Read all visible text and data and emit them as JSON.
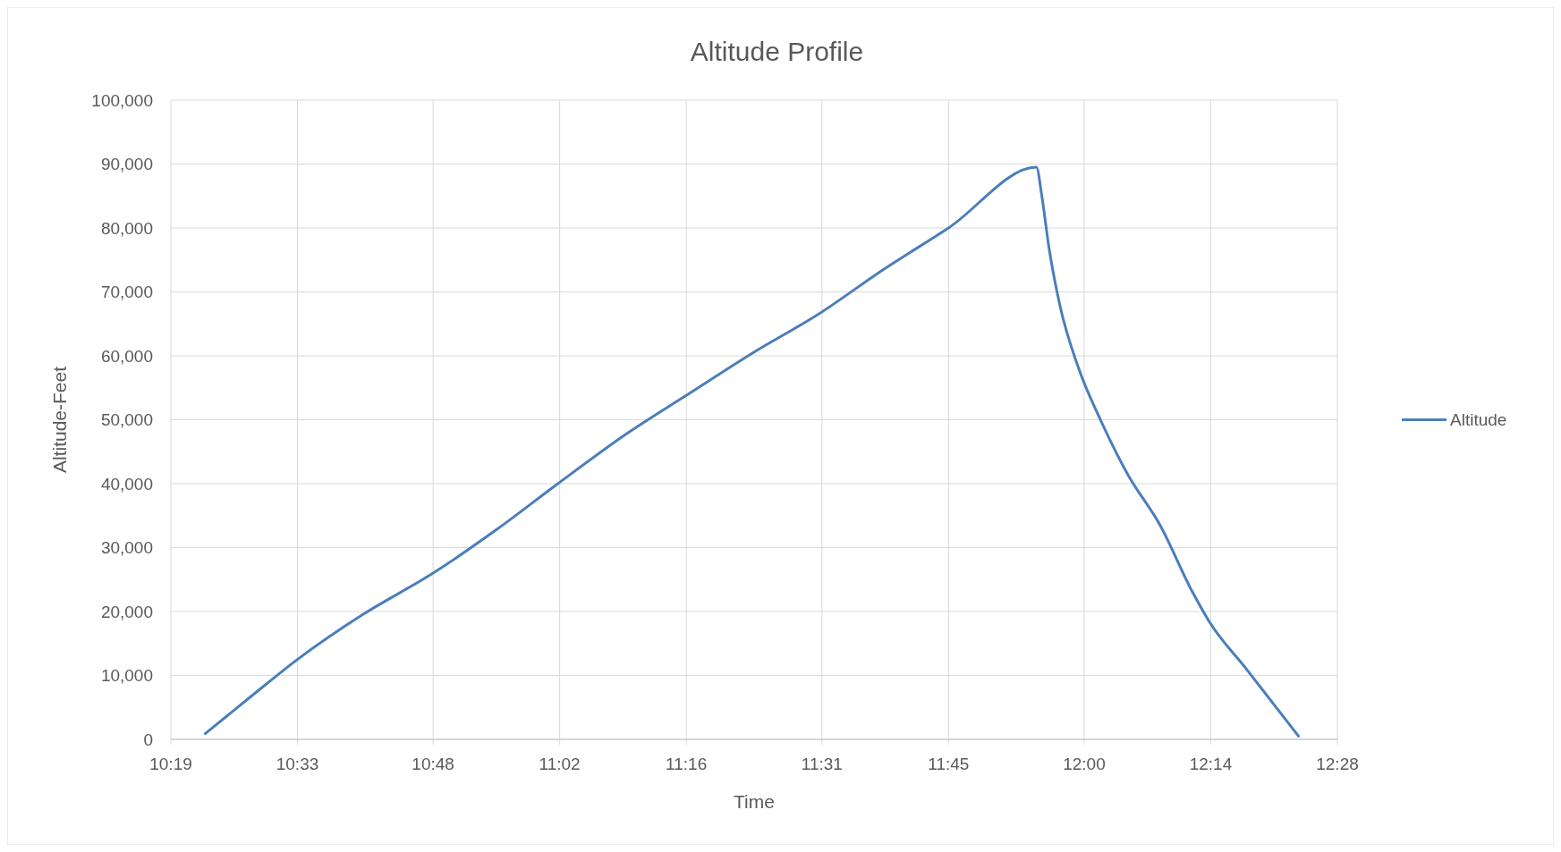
{
  "chart_data": {
    "type": "line",
    "title": "Altitude Profile",
    "xlabel": "Time",
    "ylabel": "Altitude-Feet",
    "xlim": [
      10.3167,
      12.4667
    ],
    "xticks": [
      {
        "value": 10.3167,
        "label": "10:19"
      },
      {
        "value": 10.55,
        "label": "10:33"
      },
      {
        "value": 10.8,
        "label": "10:48"
      },
      {
        "value": 11.0333,
        "label": "11:02"
      },
      {
        "value": 11.2667,
        "label": "11:16"
      },
      {
        "value": 11.5167,
        "label": "11:31"
      },
      {
        "value": 11.75,
        "label": "11:45"
      },
      {
        "value": 12.0,
        "label": "12:00"
      },
      {
        "value": 12.2333,
        "label": "12:14"
      },
      {
        "value": 12.4667,
        "label": "12:28"
      }
    ],
    "ylim": [
      0,
      100000
    ],
    "yticks": [
      {
        "value": 0,
        "label": "0"
      },
      {
        "value": 10000,
        "label": "10,000"
      },
      {
        "value": 20000,
        "label": "20,000"
      },
      {
        "value": 30000,
        "label": "30,000"
      },
      {
        "value": 40000,
        "label": "40,000"
      },
      {
        "value": 50000,
        "label": "50,000"
      },
      {
        "value": 60000,
        "label": "60,000"
      },
      {
        "value": 70000,
        "label": "70,000"
      },
      {
        "value": 80000,
        "label": "80,000"
      },
      {
        "value": 90000,
        "label": "90,000"
      },
      {
        "value": 100000,
        "label": "100,000"
      }
    ],
    "grid": true,
    "legend": "right",
    "marker": "none",
    "line_style": "solid",
    "series": [
      {
        "name": "Altitude",
        "color": "#4a7ebb",
        "x": [
          10.38,
          10.47,
          10.55,
          10.67,
          10.8,
          10.92,
          11.03,
          11.16,
          11.27,
          11.39,
          11.51,
          11.63,
          11.75,
          11.912,
          11.922,
          11.935,
          11.955,
          11.99,
          12.03,
          12.08,
          12.14,
          12.2,
          12.23,
          12.3,
          12.395
        ],
        "values": [
          900,
          7100,
          12500,
          19500,
          26000,
          33000,
          40000,
          48000,
          54000,
          60500,
          66500,
          73500,
          80000,
          89500,
          85000,
          77000,
          68000,
          58000,
          50000,
          41500,
          33500,
          23000,
          18500,
          10900,
          500
        ]
      }
    ]
  }
}
